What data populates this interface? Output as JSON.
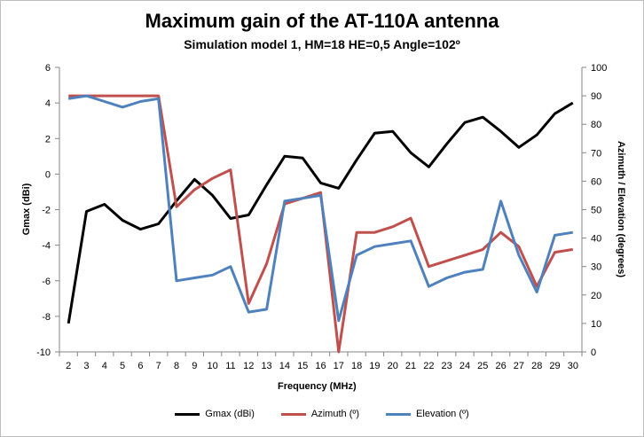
{
  "chart_data": {
    "type": "line",
    "title": "Maximum gain of the AT-110A antenna",
    "subtitle": "Simulation model 1, HM=18 HE=0,5 Angle=102º",
    "xlabel": "Frequency (MHz)",
    "ylabel": "Gmax (dBi)",
    "y2label": "Azimuth / Elevation (degrees)",
    "x": [
      2,
      3,
      4,
      5,
      6,
      7,
      8,
      9,
      10,
      11,
      12,
      13,
      14,
      15,
      16,
      17,
      18,
      19,
      20,
      21,
      22,
      23,
      24,
      25,
      26,
      27,
      28,
      29,
      30
    ],
    "ylim": [
      -10,
      6
    ],
    "yticks": [
      -10,
      -8,
      -6,
      -4,
      -2,
      0,
      2,
      4,
      6
    ],
    "y2lim": [
      0,
      100
    ],
    "y2ticks": [
      0,
      10,
      20,
      30,
      40,
      50,
      60,
      70,
      80,
      90,
      100
    ],
    "grid": false,
    "legend_position": "bottom",
    "series": [
      {
        "name": "Gmax (dBi)",
        "axis": "left",
        "color": "#000000",
        "values": [
          -8.4,
          -2.1,
          -1.7,
          -2.6,
          -3.1,
          -2.8,
          -1.5,
          -0.3,
          -1.2,
          -2.5,
          -2.3,
          -0.6,
          1.0,
          0.9,
          -0.5,
          -0.8,
          0.8,
          2.3,
          2.4,
          1.2,
          0.4,
          1.7,
          2.9,
          3.2,
          2.4,
          1.5,
          2.2,
          3.4,
          4.0
        ]
      },
      {
        "name": "Azimuth (º)",
        "axis": "right",
        "color": "#c0504d",
        "values": [
          90,
          90,
          90,
          90,
          90,
          90,
          51,
          57,
          61,
          64,
          17,
          31,
          52,
          54,
          56,
          0,
          42,
          42,
          44,
          47,
          30,
          32,
          34,
          36,
          42,
          37,
          23,
          35,
          36
        ]
      },
      {
        "name": "Elevation (º)",
        "axis": "right",
        "color": "#4f81bd",
        "values": [
          89,
          90,
          88,
          86,
          88,
          89,
          25,
          26,
          27,
          30,
          14,
          15,
          53,
          54,
          55,
          11,
          34,
          37,
          38,
          39,
          23,
          26,
          28,
          29,
          53,
          34,
          21,
          41,
          42
        ]
      }
    ]
  }
}
